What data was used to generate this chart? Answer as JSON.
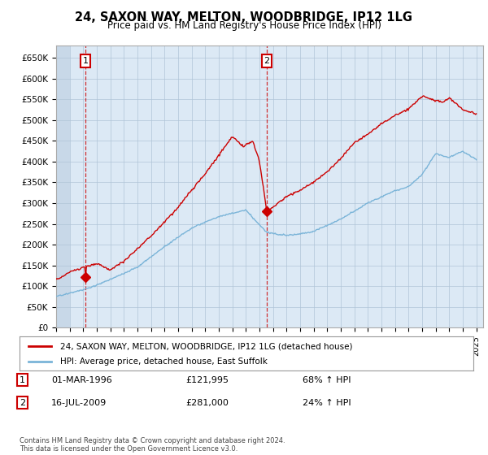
{
  "title": "24, SAXON WAY, MELTON, WOODBRIDGE, IP12 1LG",
  "subtitle": "Price paid vs. HM Land Registry's House Price Index (HPI)",
  "xlim_start": 1994.0,
  "xlim_end": 2025.5,
  "ylim_min": 0,
  "ylim_max": 680000,
  "yticks": [
    0,
    50000,
    100000,
    150000,
    200000,
    250000,
    300000,
    350000,
    400000,
    450000,
    500000,
    550000,
    600000,
    650000
  ],
  "ytick_labels": [
    "£0",
    "£50K",
    "£100K",
    "£150K",
    "£200K",
    "£250K",
    "£300K",
    "£350K",
    "£400K",
    "£450K",
    "£500K",
    "£550K",
    "£600K",
    "£650K"
  ],
  "sale1_x": 1996.17,
  "sale1_y": 121995,
  "sale2_x": 2009.54,
  "sale2_y": 281000,
  "hpi_line_color": "#7ab4d8",
  "price_line_color": "#cc0000",
  "bg_plot_color": "#dce9f5",
  "bg_hatch_color": "#c8d8e8",
  "legend_label1": "24, SAXON WAY, MELTON, WOODBRIDGE, IP12 1LG (detached house)",
  "legend_label2": "HPI: Average price, detached house, East Suffolk",
  "footer": "Contains HM Land Registry data © Crown copyright and database right 2024.\nThis data is licensed under the Open Government Licence v3.0.",
  "bg_color": "#ffffff",
  "grid_color": "#b0c4d8"
}
